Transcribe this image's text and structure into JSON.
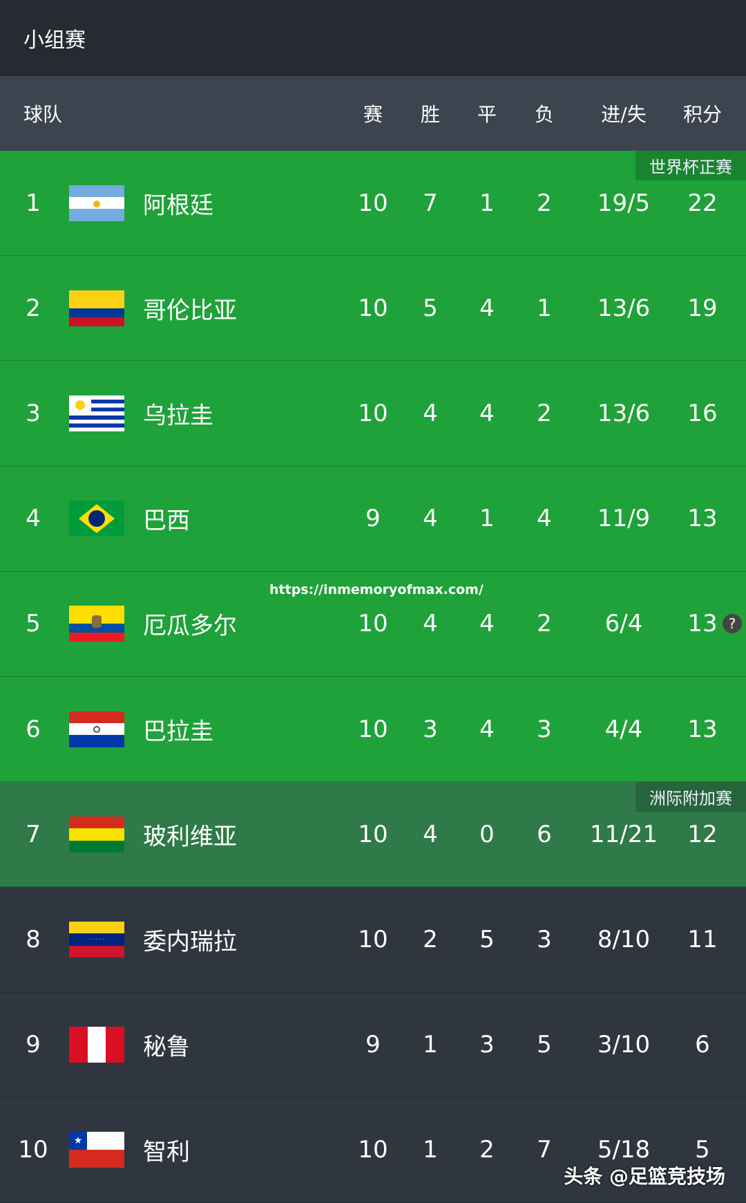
{
  "title": "小组赛",
  "headers": {
    "team": "球队",
    "played": "赛",
    "won": "胜",
    "drawn": "平",
    "lost": "负",
    "goals": "进/失",
    "points": "积分"
  },
  "zone_labels": {
    "qualify": "世界杯正赛",
    "playoff": "洲际附加赛"
  },
  "colors": {
    "qualify": "#1fa23a",
    "playoff": "#2f7a48",
    "normal": "#2f363f"
  },
  "rows": [
    {
      "rank": "1",
      "team": "阿根廷",
      "flag": "argentina",
      "p": "10",
      "w": "7",
      "d": "1",
      "l": "2",
      "g": "19/5",
      "pts": "22",
      "zone": "q"
    },
    {
      "rank": "2",
      "team": "哥伦比亚",
      "flag": "colombia",
      "p": "10",
      "w": "5",
      "d": "4",
      "l": "1",
      "g": "13/6",
      "pts": "19",
      "zone": "q"
    },
    {
      "rank": "3",
      "team": "乌拉圭",
      "flag": "uruguay",
      "p": "10",
      "w": "4",
      "d": "4",
      "l": "2",
      "g": "13/6",
      "pts": "16",
      "zone": "q"
    },
    {
      "rank": "4",
      "team": "巴西",
      "flag": "brazil",
      "p": "9",
      "w": "4",
      "d": "1",
      "l": "4",
      "g": "11/9",
      "pts": "13",
      "zone": "q"
    },
    {
      "rank": "5",
      "team": "厄瓜多尔",
      "flag": "ecuador",
      "p": "10",
      "w": "4",
      "d": "4",
      "l": "2",
      "g": "6/4",
      "pts": "13",
      "zone": "q"
    },
    {
      "rank": "6",
      "team": "巴拉圭",
      "flag": "paraguay",
      "p": "10",
      "w": "3",
      "d": "4",
      "l": "3",
      "g": "4/4",
      "pts": "13",
      "zone": "q"
    },
    {
      "rank": "7",
      "team": "玻利维亚",
      "flag": "bolivia",
      "p": "10",
      "w": "4",
      "d": "0",
      "l": "6",
      "g": "11/21",
      "pts": "12",
      "zone": "p"
    },
    {
      "rank": "8",
      "team": "委内瑞拉",
      "flag": "venezuela",
      "p": "10",
      "w": "2",
      "d": "5",
      "l": "3",
      "g": "8/10",
      "pts": "11",
      "zone": "n"
    },
    {
      "rank": "9",
      "team": "秘鲁",
      "flag": "peru",
      "p": "9",
      "w": "1",
      "d": "3",
      "l": "5",
      "g": "3/10",
      "pts": "6",
      "zone": "n"
    },
    {
      "rank": "10",
      "team": "智利",
      "flag": "chile",
      "p": "10",
      "w": "1",
      "d": "2",
      "l": "7",
      "g": "5/18",
      "pts": "5",
      "zone": "n"
    }
  ],
  "url_overlay": "https://inmemoryofmax.com/",
  "help_icon": "?",
  "watermark": "头条 @足篮竞技场"
}
